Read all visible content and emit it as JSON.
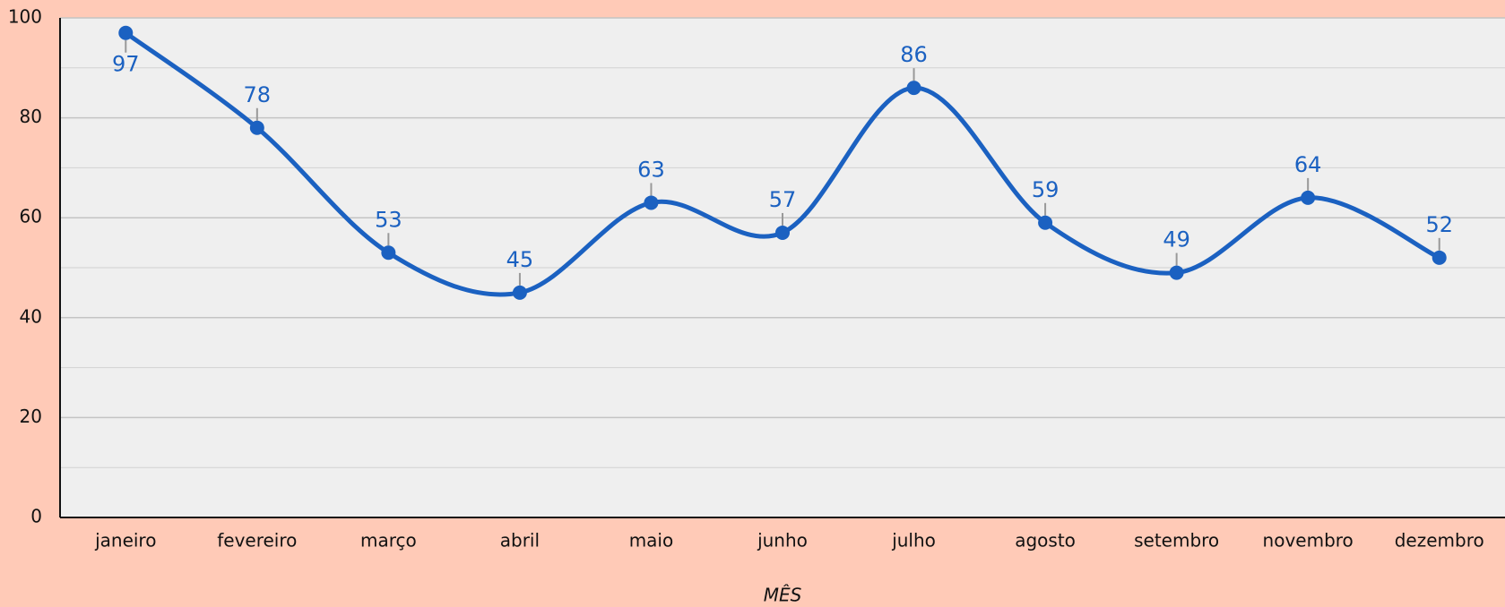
{
  "chart_data": {
    "type": "line",
    "x_label": "MÊS",
    "categories": [
      "janeiro",
      "fevereiro",
      "março",
      "abril",
      "maio",
      "junho",
      "julho",
      "agosto",
      "setembro",
      "novembro",
      "dezembro"
    ],
    "values": [
      97,
      78,
      53,
      45,
      63,
      57,
      86,
      59,
      49,
      64,
      52
    ],
    "color": "#1b61c1",
    "ylim": [
      0,
      100
    ],
    "yticks": [
      0,
      20,
      40,
      60,
      80,
      100
    ],
    "minor_yticks": [
      10,
      30,
      50,
      70,
      90
    ],
    "grid": true,
    "smooth": true
  }
}
